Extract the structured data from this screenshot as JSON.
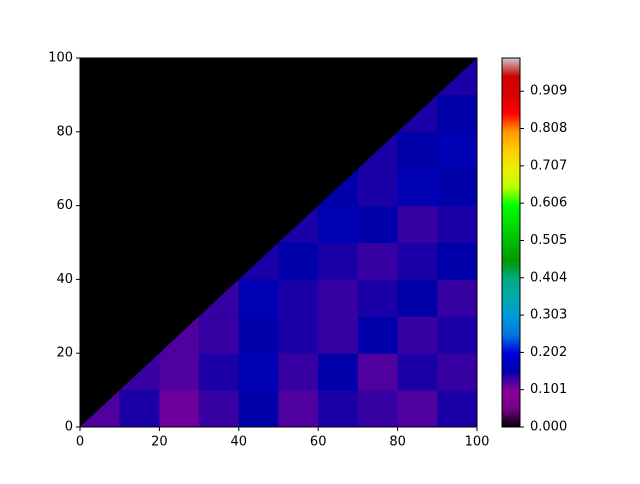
{
  "chart_data": {
    "type": "contour",
    "xlim": [
      0,
      100
    ],
    "ylim": [
      0,
      100
    ],
    "xticks": [
      0,
      20,
      40,
      60,
      80,
      100
    ],
    "yticks": [
      0,
      20,
      40,
      60,
      80,
      100
    ],
    "z": [
      [
        0.12,
        0.14,
        0.11,
        0.13,
        0.15,
        0.12,
        0.14,
        0.13,
        0.12,
        0.14
      ],
      [
        0,
        0.13,
        0.12,
        0.14,
        0.16,
        0.13,
        0.15,
        0.12,
        0.14,
        0.13
      ],
      [
        0,
        0,
        0.12,
        0.13,
        0.15,
        0.14,
        0.13,
        0.15,
        0.13,
        0.14
      ],
      [
        0,
        0,
        0,
        0.13,
        0.16,
        0.14,
        0.13,
        0.14,
        0.15,
        0.13
      ],
      [
        0,
        0,
        0,
        0,
        0.14,
        0.15,
        0.14,
        0.13,
        0.14,
        0.15
      ],
      [
        0,
        0,
        0,
        0,
        0,
        0.14,
        0.16,
        0.15,
        0.13,
        0.14
      ],
      [
        0,
        0,
        0,
        0,
        0,
        0,
        0.15,
        0.14,
        0.16,
        0.15
      ],
      [
        0,
        0,
        0,
        0,
        0,
        0,
        0,
        0.14,
        0.15,
        0.16
      ],
      [
        0,
        0,
        0,
        0,
        0,
        0,
        0,
        0,
        0.14,
        0.15
      ],
      [
        0,
        0,
        0,
        0,
        0,
        0,
        0,
        0,
        0,
        0.14
      ]
    ],
    "clim": [
      0,
      0.999
    ],
    "cticks": [
      {
        "value": 0,
        "label": "0.000"
      },
      0.101,
      0.202,
      0.303,
      0.404,
      0.505,
      0.606,
      0.707,
      0.808,
      0.909
    ],
    "colormap": [
      "#000000",
      "#770088",
      "#880099",
      "#0000aa",
      "#0000dd",
      "#0077dd",
      "#0099dd",
      "#00aaaa",
      "#00aa88",
      "#009900",
      "#00bb00",
      "#00dd00",
      "#00ff00",
      "#bbff00",
      "#eeee00",
      "#ffcc00",
      "#ff9900",
      "#ff0000",
      "#dd0000",
      "#cc0000",
      "#cccccc"
    ]
  }
}
